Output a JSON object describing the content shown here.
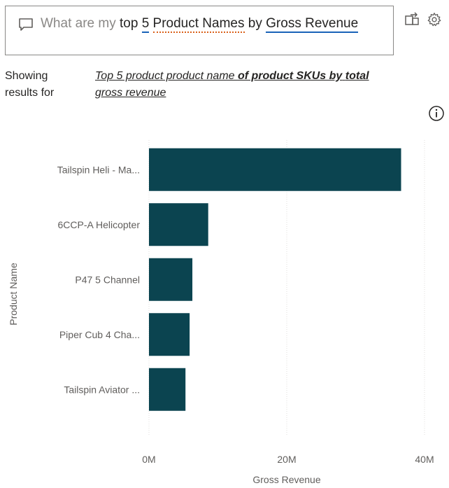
{
  "question": {
    "prefix": "What are my",
    "word_top": "top",
    "word_5": "5",
    "term_product_names": "Product Names",
    "word_by": "by",
    "term_gross_revenue": "Gross Revenue"
  },
  "icons": {
    "chat": "chat-bubble-icon",
    "share": "share-icon",
    "settings": "gear-icon",
    "info": "info-icon"
  },
  "showing": {
    "label": "Showing results for",
    "p1": "Top 5 product product name ",
    "b1": "of product SKUs by",
    "p2": " ",
    "b2": "total",
    "p3": " gross revenue"
  },
  "colors": {
    "bar": "#0b4450",
    "accent_blue": "#1a63b8",
    "accent_orange": "#d9601a"
  },
  "chart_data": {
    "type": "bar",
    "orientation": "horizontal",
    "categories": [
      "Tailspin Heli - Ma...",
      "6CCP-A Helicopter",
      "P47 5 Channel",
      "Piper Cub 4 Cha...",
      "Tailspin Aviator ..."
    ],
    "values": [
      36600000,
      8600000,
      6300000,
      5900000,
      5300000
    ],
    "xlabel": "Gross Revenue",
    "ylabel": "Product Name",
    "xlim": [
      0,
      40000000
    ],
    "xticks": [
      0,
      20000000,
      40000000
    ],
    "xtick_labels": [
      "0M",
      "20M",
      "40M"
    ],
    "grid": "vertical"
  }
}
